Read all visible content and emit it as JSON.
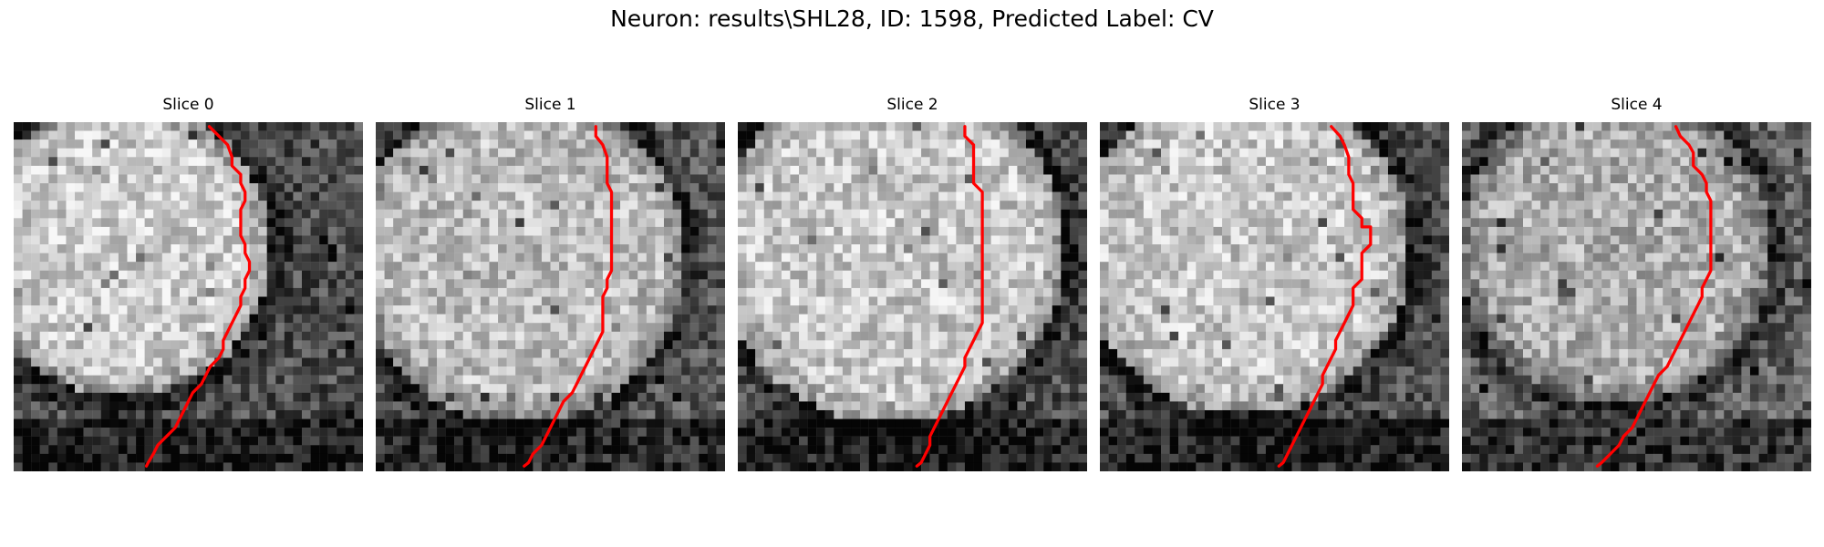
{
  "figure": {
    "title": "Neuron: results\\SHL28, ID: 1598, Predicted Label: CV"
  },
  "colors": {
    "boundary": "#ff0000"
  },
  "panels": [
    {
      "title": "Slice 0",
      "contour": [
        [
          22.4,
          0.5
        ],
        [
          23.5,
          1.6
        ],
        [
          24.5,
          2.6
        ],
        [
          25,
          4
        ],
        [
          25,
          5
        ],
        [
          26,
          6
        ],
        [
          26,
          7
        ],
        [
          26.5,
          8
        ],
        [
          26.5,
          9
        ],
        [
          26,
          10
        ],
        [
          26,
          11
        ],
        [
          26,
          12
        ],
        [
          26,
          13
        ],
        [
          26.5,
          14
        ],
        [
          26.5,
          15
        ],
        [
          27,
          16
        ],
        [
          27,
          17
        ],
        [
          26.5,
          18
        ],
        [
          26.5,
          19
        ],
        [
          26,
          20
        ],
        [
          26,
          21
        ],
        [
          25.5,
          22
        ],
        [
          25,
          23
        ],
        [
          24.5,
          24
        ],
        [
          24,
          25
        ],
        [
          24,
          26
        ],
        [
          23.5,
          27
        ],
        [
          22.5,
          28
        ],
        [
          22,
          29
        ],
        [
          21.5,
          30
        ],
        [
          20.5,
          31
        ],
        [
          20,
          32
        ],
        [
          19.5,
          33
        ],
        [
          19,
          34
        ],
        [
          18.5,
          35
        ],
        [
          17.5,
          36
        ],
        [
          16.5,
          37
        ],
        [
          16,
          38
        ],
        [
          15.4,
          39
        ],
        [
          15.2,
          39.4
        ]
      ]
    },
    {
      "title": "Slice 1",
      "contour": [
        [
          25.2,
          0.5
        ],
        [
          25.2,
          1.6
        ],
        [
          26,
          2.6
        ],
        [
          26.5,
          4
        ],
        [
          26.5,
          5
        ],
        [
          26.5,
          6
        ],
        [
          26.5,
          7
        ],
        [
          27,
          8
        ],
        [
          27,
          9
        ],
        [
          27,
          10
        ],
        [
          27,
          11
        ],
        [
          27,
          12
        ],
        [
          27,
          13
        ],
        [
          27,
          14
        ],
        [
          27,
          15
        ],
        [
          27,
          16
        ],
        [
          27,
          17
        ],
        [
          26.5,
          18
        ],
        [
          26.5,
          19
        ],
        [
          26,
          20
        ],
        [
          26,
          21
        ],
        [
          26,
          22
        ],
        [
          26,
          23
        ],
        [
          26,
          24
        ],
        [
          25.5,
          25
        ],
        [
          25,
          26
        ],
        [
          24.5,
          27
        ],
        [
          24,
          28
        ],
        [
          23.5,
          29
        ],
        [
          23,
          30
        ],
        [
          22.5,
          31
        ],
        [
          21.5,
          32
        ],
        [
          21,
          33
        ],
        [
          20.5,
          34
        ],
        [
          20,
          35
        ],
        [
          19.5,
          36
        ],
        [
          19,
          37
        ],
        [
          18,
          38
        ],
        [
          17.5,
          39
        ],
        [
          17,
          39.4
        ]
      ]
    },
    {
      "title": "Slice 2",
      "contour": [
        [
          26,
          0.5
        ],
        [
          26,
          1.6
        ],
        [
          27,
          2.6
        ],
        [
          27,
          4
        ],
        [
          27,
          5
        ],
        [
          27,
          6
        ],
        [
          27,
          7
        ],
        [
          28,
          8
        ],
        [
          28,
          9
        ],
        [
          28,
          10
        ],
        [
          28,
          11
        ],
        [
          28,
          12
        ],
        [
          28,
          13
        ],
        [
          28,
          14
        ],
        [
          28,
          15
        ],
        [
          28,
          16
        ],
        [
          28,
          17
        ],
        [
          28,
          18
        ],
        [
          28,
          19
        ],
        [
          28,
          20
        ],
        [
          28,
          21
        ],
        [
          28,
          22
        ],
        [
          28,
          23
        ],
        [
          27.5,
          24
        ],
        [
          27,
          25
        ],
        [
          26.5,
          26
        ],
        [
          26,
          27
        ],
        [
          26,
          28
        ],
        [
          25.5,
          29
        ],
        [
          25,
          30
        ],
        [
          24.5,
          31
        ],
        [
          24,
          32
        ],
        [
          23.5,
          33
        ],
        [
          23,
          34
        ],
        [
          22.5,
          35
        ],
        [
          22,
          36
        ],
        [
          22,
          37
        ],
        [
          21.5,
          38
        ],
        [
          21,
          39
        ],
        [
          20.5,
          39.4
        ]
      ]
    },
    {
      "title": "Slice 3",
      "contour": [
        [
          26.5,
          0.5
        ],
        [
          27.5,
          1.6
        ],
        [
          28,
          2.6
        ],
        [
          28.5,
          4
        ],
        [
          28.5,
          5
        ],
        [
          28.5,
          6
        ],
        [
          29,
          7
        ],
        [
          29,
          8
        ],
        [
          29,
          9
        ],
        [
          29,
          10
        ],
        [
          30,
          11
        ],
        [
          30,
          12
        ],
        [
          31,
          12
        ],
        [
          31,
          13
        ],
        [
          31,
          14
        ],
        [
          30,
          15
        ],
        [
          30,
          16
        ],
        [
          30,
          17
        ],
        [
          30,
          18
        ],
        [
          29,
          19
        ],
        [
          29,
          20
        ],
        [
          29,
          21
        ],
        [
          28.5,
          22
        ],
        [
          28,
          23
        ],
        [
          27.5,
          24
        ],
        [
          27,
          25
        ],
        [
          27,
          26
        ],
        [
          26.5,
          27
        ],
        [
          26,
          28
        ],
        [
          25.5,
          29
        ],
        [
          25.5,
          30
        ],
        [
          25,
          31
        ],
        [
          24.5,
          32
        ],
        [
          24,
          33
        ],
        [
          23.5,
          34
        ],
        [
          23,
          35
        ],
        [
          22.5,
          36
        ],
        [
          22,
          37
        ],
        [
          21.5,
          38
        ],
        [
          21,
          39
        ],
        [
          20.5,
          39.4
        ]
      ]
    },
    {
      "title": "Slice 4",
      "contour": [
        [
          24.5,
          0.5
        ],
        [
          25,
          1.6
        ],
        [
          26,
          2.6
        ],
        [
          26.5,
          3.5
        ],
        [
          26.5,
          5
        ],
        [
          27.5,
          6
        ],
        [
          28,
          7
        ],
        [
          28,
          8
        ],
        [
          28.5,
          9
        ],
        [
          28.5,
          10
        ],
        [
          28.5,
          11
        ],
        [
          28.5,
          12
        ],
        [
          28.5,
          13
        ],
        [
          28.5,
          14
        ],
        [
          28.5,
          15
        ],
        [
          28.5,
          16
        ],
        [
          28.5,
          17
        ],
        [
          28,
          18
        ],
        [
          27.5,
          19
        ],
        [
          27.5,
          20
        ],
        [
          27,
          21
        ],
        [
          26.5,
          22
        ],
        [
          26,
          23
        ],
        [
          25.5,
          24
        ],
        [
          25,
          25
        ],
        [
          24.5,
          26
        ],
        [
          24,
          27
        ],
        [
          23.5,
          28
        ],
        [
          22.5,
          29
        ],
        [
          22,
          30
        ],
        [
          21.5,
          31
        ],
        [
          21,
          32
        ],
        [
          20.5,
          33
        ],
        [
          20,
          34
        ],
        [
          19.5,
          35
        ],
        [
          18.5,
          36
        ],
        [
          18,
          37
        ],
        [
          17,
          38
        ],
        [
          16,
          39
        ],
        [
          15.5,
          39.4
        ]
      ]
    }
  ]
}
